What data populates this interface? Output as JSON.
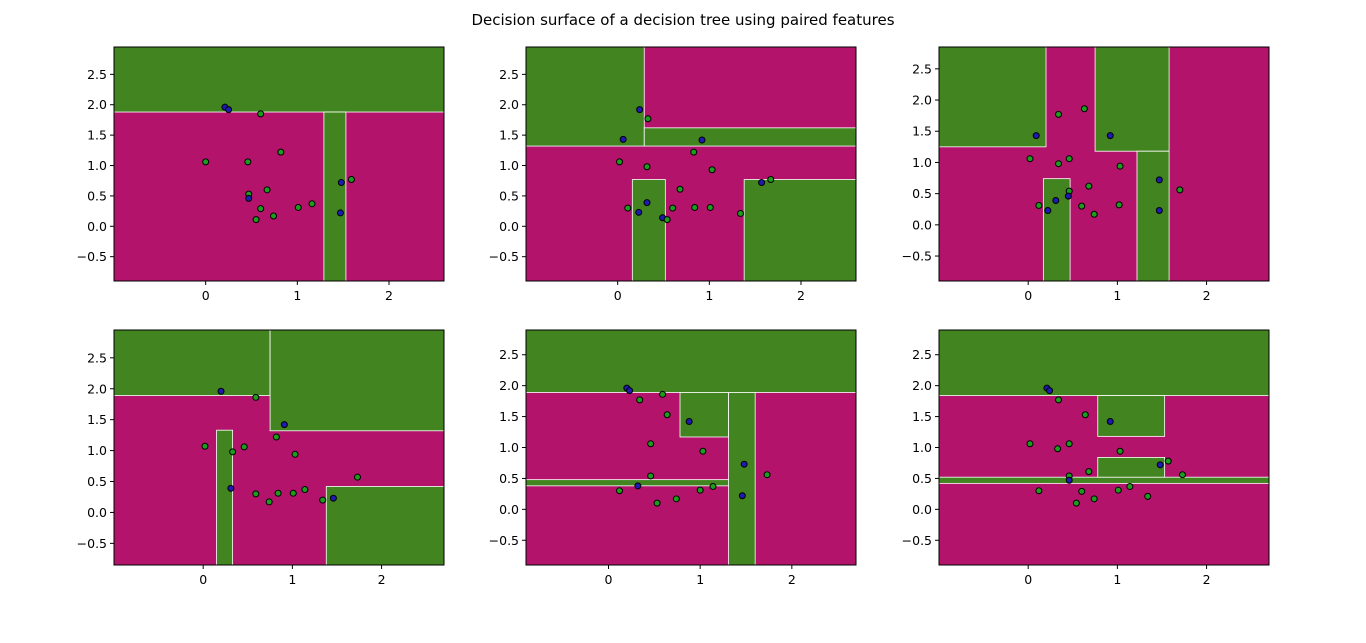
{
  "suptitle": "Decision surface of a decision tree using paired features",
  "colors": {
    "class_a": "#b3136b",
    "class_b": "#428520",
    "boundary": "#ffffff",
    "point_a": "#1d9c1d",
    "point_b": "#1c1cb0",
    "point_edge": "#000000"
  },
  "chart_data": [
    {
      "type": "heatmap",
      "title": "",
      "xlabel": "",
      "ylabel": "",
      "xlim": [
        -1.0,
        2.6
      ],
      "ylim": [
        -0.9,
        2.95
      ],
      "xticks": [
        0,
        1,
        2
      ],
      "yticks": [
        -0.5,
        0.0,
        0.5,
        1.0,
        1.5,
        2.0,
        2.5
      ],
      "background_class": "a",
      "regions": [
        {
          "class": "b",
          "x": [
            -1.0,
            2.6
          ],
          "y": [
            1.88,
            2.95
          ]
        },
        {
          "class": "b",
          "x": [
            1.29,
            1.53
          ],
          "y": [
            -0.9,
            1.88
          ]
        }
      ],
      "points": [
        {
          "x": 0.21,
          "y": 1.96,
          "c": "b"
        },
        {
          "x": 0.25,
          "y": 1.92,
          "c": "b"
        },
        {
          "x": 0.6,
          "y": 1.85,
          "c": "a"
        },
        {
          "x": 0.82,
          "y": 1.22,
          "c": "a"
        },
        {
          "x": 0.0,
          "y": 1.06,
          "c": "a"
        },
        {
          "x": 0.46,
          "y": 1.06,
          "c": "a"
        },
        {
          "x": 0.47,
          "y": 0.53,
          "c": "a"
        },
        {
          "x": 0.67,
          "y": 0.6,
          "c": "a"
        },
        {
          "x": 0.47,
          "y": 0.46,
          "c": "b"
        },
        {
          "x": 0.6,
          "y": 0.29,
          "c": "a"
        },
        {
          "x": 0.55,
          "y": 0.11,
          "c": "a"
        },
        {
          "x": 0.74,
          "y": 0.17,
          "c": "a"
        },
        {
          "x": 1.01,
          "y": 0.31,
          "c": "a"
        },
        {
          "x": 1.16,
          "y": 0.37,
          "c": "a"
        },
        {
          "x": 1.48,
          "y": 0.72,
          "c": "b"
        },
        {
          "x": 1.59,
          "y": 0.77,
          "c": "a"
        },
        {
          "x": 1.47,
          "y": 0.22,
          "c": "b"
        }
      ]
    },
    {
      "type": "heatmap",
      "title": "",
      "xlabel": "",
      "ylabel": "",
      "xlim": [
        -1.0,
        2.6
      ],
      "ylim": [
        -0.9,
        2.95
      ],
      "xticks": [
        0,
        1,
        2
      ],
      "yticks": [
        -0.5,
        0.0,
        0.5,
        1.0,
        1.5,
        2.0,
        2.5
      ],
      "background_class": "a",
      "regions": [
        {
          "class": "b",
          "x": [
            -1.0,
            0.29
          ],
          "y": [
            1.32,
            2.95
          ]
        },
        {
          "class": "b",
          "x": [
            0.29,
            2.6
          ],
          "y": [
            1.32,
            1.62
          ]
        },
        {
          "class": "b",
          "x": [
            0.16,
            0.52
          ],
          "y": [
            -0.9,
            0.77
          ]
        },
        {
          "class": "b",
          "x": [
            1.38,
            2.6
          ],
          "y": [
            -0.9,
            0.77
          ]
        }
      ],
      "points": [
        {
          "x": 0.24,
          "y": 1.92,
          "c": "b"
        },
        {
          "x": 0.33,
          "y": 1.77,
          "c": "a"
        },
        {
          "x": 0.06,
          "y": 1.43,
          "c": "b"
        },
        {
          "x": 0.92,
          "y": 1.42,
          "c": "b"
        },
        {
          "x": 0.83,
          "y": 1.22,
          "c": "a"
        },
        {
          "x": 0.02,
          "y": 1.06,
          "c": "a"
        },
        {
          "x": 0.32,
          "y": 0.98,
          "c": "a"
        },
        {
          "x": 1.03,
          "y": 0.93,
          "c": "a"
        },
        {
          "x": 0.68,
          "y": 0.61,
          "c": "a"
        },
        {
          "x": 0.32,
          "y": 0.39,
          "c": "b"
        },
        {
          "x": 0.11,
          "y": 0.3,
          "c": "a"
        },
        {
          "x": 0.23,
          "y": 0.23,
          "c": "b"
        },
        {
          "x": 0.6,
          "y": 0.3,
          "c": "a"
        },
        {
          "x": 0.84,
          "y": 0.31,
          "c": "a"
        },
        {
          "x": 1.01,
          "y": 0.31,
          "c": "a"
        },
        {
          "x": 0.49,
          "y": 0.14,
          "c": "b"
        },
        {
          "x": 0.54,
          "y": 0.11,
          "c": "a"
        },
        {
          "x": 1.34,
          "y": 0.21,
          "c": "a"
        },
        {
          "x": 1.57,
          "y": 0.72,
          "c": "b"
        },
        {
          "x": 1.67,
          "y": 0.77,
          "c": "a"
        }
      ]
    },
    {
      "type": "heatmap",
      "title": "",
      "xlabel": "",
      "ylabel": "",
      "xlim": [
        -1.0,
        2.7
      ],
      "ylim": [
        -0.9,
        2.85
      ],
      "xticks": [
        0,
        1,
        2
      ],
      "yticks": [
        -0.5,
        0.0,
        0.5,
        1.0,
        1.5,
        2.0,
        2.5
      ],
      "background_class": "a",
      "regions": [
        {
          "class": "b",
          "x": [
            -1.0,
            0.2
          ],
          "y": [
            1.25,
            2.85
          ]
        },
        {
          "class": "b",
          "x": [
            0.75,
            1.58
          ],
          "y": [
            1.18,
            2.85
          ]
        },
        {
          "class": "b",
          "x": [
            1.22,
            1.58
          ],
          "y": [
            -0.9,
            1.18
          ]
        },
        {
          "class": "b",
          "x": [
            0.17,
            0.47
          ],
          "y": [
            -0.9,
            0.74
          ]
        }
      ],
      "points": [
        {
          "x": 0.34,
          "y": 1.77,
          "c": "a"
        },
        {
          "x": 0.63,
          "y": 1.86,
          "c": "a"
        },
        {
          "x": 0.09,
          "y": 1.43,
          "c": "b"
        },
        {
          "x": 0.92,
          "y": 1.43,
          "c": "b"
        },
        {
          "x": 0.02,
          "y": 1.06,
          "c": "a"
        },
        {
          "x": 0.46,
          "y": 1.06,
          "c": "a"
        },
        {
          "x": 0.34,
          "y": 0.98,
          "c": "a"
        },
        {
          "x": 1.03,
          "y": 0.94,
          "c": "a"
        },
        {
          "x": 0.68,
          "y": 0.62,
          "c": "a"
        },
        {
          "x": 0.46,
          "y": 0.54,
          "c": "a"
        },
        {
          "x": 0.45,
          "y": 0.46,
          "c": "b"
        },
        {
          "x": 0.31,
          "y": 0.39,
          "c": "b"
        },
        {
          "x": 0.12,
          "y": 0.31,
          "c": "a"
        },
        {
          "x": 0.22,
          "y": 0.23,
          "c": "b"
        },
        {
          "x": 0.6,
          "y": 0.3,
          "c": "a"
        },
        {
          "x": 0.74,
          "y": 0.17,
          "c": "a"
        },
        {
          "x": 1.02,
          "y": 0.32,
          "c": "a"
        },
        {
          "x": 1.47,
          "y": 0.72,
          "c": "b"
        },
        {
          "x": 1.47,
          "y": 0.23,
          "c": "b"
        },
        {
          "x": 1.7,
          "y": 0.56,
          "c": "a"
        }
      ]
    },
    {
      "type": "heatmap",
      "title": "",
      "xlabel": "",
      "ylabel": "",
      "xlim": [
        -1.0,
        2.7
      ],
      "ylim": [
        -0.85,
        2.95
      ],
      "xticks": [
        0,
        1,
        2
      ],
      "yticks": [
        -0.5,
        0.0,
        0.5,
        1.0,
        1.5,
        2.0,
        2.5
      ],
      "background_class": "a",
      "regions": [
        {
          "class": "b",
          "x": [
            -1.0,
            0.75
          ],
          "y": [
            1.89,
            2.95
          ]
        },
        {
          "class": "b",
          "x": [
            0.75,
            2.7
          ],
          "y": [
            1.32,
            2.95
          ]
        },
        {
          "class": "b",
          "x": [
            0.15,
            0.33
          ],
          "y": [
            -0.85,
            1.33
          ]
        },
        {
          "class": "b",
          "x": [
            1.38,
            2.7
          ],
          "y": [
            -0.85,
            0.42
          ]
        }
      ],
      "points": [
        {
          "x": 0.2,
          "y": 1.96,
          "c": "b"
        },
        {
          "x": 0.59,
          "y": 1.86,
          "c": "a"
        },
        {
          "x": 0.91,
          "y": 1.42,
          "c": "b"
        },
        {
          "x": 0.82,
          "y": 1.22,
          "c": "a"
        },
        {
          "x": 0.02,
          "y": 1.07,
          "c": "a"
        },
        {
          "x": 0.46,
          "y": 1.06,
          "c": "a"
        },
        {
          "x": 0.33,
          "y": 0.98,
          "c": "a"
        },
        {
          "x": 1.03,
          "y": 0.94,
          "c": "a"
        },
        {
          "x": 0.31,
          "y": 0.39,
          "c": "b"
        },
        {
          "x": 0.59,
          "y": 0.3,
          "c": "a"
        },
        {
          "x": 0.84,
          "y": 0.31,
          "c": "a"
        },
        {
          "x": 1.01,
          "y": 0.31,
          "c": "a"
        },
        {
          "x": 1.14,
          "y": 0.37,
          "c": "a"
        },
        {
          "x": 0.74,
          "y": 0.17,
          "c": "a"
        },
        {
          "x": 1.34,
          "y": 0.2,
          "c": "a"
        },
        {
          "x": 1.46,
          "y": 0.23,
          "c": "b"
        },
        {
          "x": 1.73,
          "y": 0.57,
          "c": "a"
        }
      ]
    },
    {
      "type": "heatmap",
      "title": "",
      "xlabel": "",
      "ylabel": "",
      "xlim": [
        -0.9,
        2.7
      ],
      "ylim": [
        -0.9,
        2.9
      ],
      "xticks": [
        0,
        1,
        2
      ],
      "yticks": [
        -0.5,
        0.0,
        0.5,
        1.0,
        1.5,
        2.0,
        2.5
      ],
      "background_class": "a",
      "regions": [
        {
          "class": "b",
          "x": [
            -0.9,
            2.7
          ],
          "y": [
            1.89,
            2.9
          ]
        },
        {
          "class": "b",
          "x": [
            0.78,
            1.31
          ],
          "y": [
            1.17,
            1.89
          ]
        },
        {
          "class": "b",
          "x": [
            1.31,
            1.6
          ],
          "y": [
            -0.9,
            1.89
          ]
        },
        {
          "class": "b",
          "x": [
            -0.9,
            1.31
          ],
          "y": [
            0.38,
            0.48
          ]
        }
      ],
      "points": [
        {
          "x": 0.2,
          "y": 1.96,
          "c": "b"
        },
        {
          "x": 0.23,
          "y": 1.92,
          "c": "b"
        },
        {
          "x": 0.59,
          "y": 1.86,
          "c": "a"
        },
        {
          "x": 0.34,
          "y": 1.77,
          "c": "a"
        },
        {
          "x": 0.64,
          "y": 1.53,
          "c": "a"
        },
        {
          "x": 0.88,
          "y": 1.42,
          "c": "b"
        },
        {
          "x": 0.46,
          "y": 1.06,
          "c": "a"
        },
        {
          "x": 1.03,
          "y": 0.94,
          "c": "a"
        },
        {
          "x": 1.48,
          "y": 0.73,
          "c": "b"
        },
        {
          "x": 1.73,
          "y": 0.56,
          "c": "a"
        },
        {
          "x": 0.46,
          "y": 0.54,
          "c": "a"
        },
        {
          "x": 0.32,
          "y": 0.38,
          "c": "b"
        },
        {
          "x": 0.12,
          "y": 0.3,
          "c": "a"
        },
        {
          "x": 1.0,
          "y": 0.31,
          "c": "a"
        },
        {
          "x": 1.14,
          "y": 0.37,
          "c": "a"
        },
        {
          "x": 0.74,
          "y": 0.17,
          "c": "a"
        },
        {
          "x": 0.53,
          "y": 0.1,
          "c": "a"
        },
        {
          "x": 1.46,
          "y": 0.22,
          "c": "b"
        }
      ]
    },
    {
      "type": "heatmap",
      "title": "",
      "xlabel": "",
      "ylabel": "",
      "xlim": [
        -1.0,
        2.7
      ],
      "ylim": [
        -0.9,
        2.9
      ],
      "xticks": [
        0,
        1,
        2
      ],
      "yticks": [
        -0.5,
        0.0,
        0.5,
        1.0,
        1.5,
        2.0,
        2.5
      ],
      "background_class": "a",
      "regions": [
        {
          "class": "b",
          "x": [
            -1.0,
            2.7
          ],
          "y": [
            1.84,
            2.9
          ]
        },
        {
          "class": "b",
          "x": [
            0.78,
            1.53
          ],
          "y": [
            1.18,
            1.84
          ]
        },
        {
          "class": "b",
          "x": [
            -1.0,
            2.7
          ],
          "y": [
            0.42,
            0.52
          ]
        },
        {
          "class": "b",
          "x": [
            0.78,
            1.53
          ],
          "y": [
            0.52,
            0.84
          ]
        }
      ],
      "points": [
        {
          "x": 0.21,
          "y": 1.96,
          "c": "b"
        },
        {
          "x": 0.24,
          "y": 1.92,
          "c": "b"
        },
        {
          "x": 0.34,
          "y": 1.77,
          "c": "a"
        },
        {
          "x": 0.64,
          "y": 1.53,
          "c": "a"
        },
        {
          "x": 0.92,
          "y": 1.42,
          "c": "b"
        },
        {
          "x": 0.02,
          "y": 1.06,
          "c": "a"
        },
        {
          "x": 0.46,
          "y": 1.06,
          "c": "a"
        },
        {
          "x": 0.33,
          "y": 0.98,
          "c": "a"
        },
        {
          "x": 1.03,
          "y": 0.94,
          "c": "a"
        },
        {
          "x": 1.48,
          "y": 0.72,
          "c": "b"
        },
        {
          "x": 1.57,
          "y": 0.78,
          "c": "a"
        },
        {
          "x": 1.73,
          "y": 0.56,
          "c": "a"
        },
        {
          "x": 0.68,
          "y": 0.61,
          "c": "a"
        },
        {
          "x": 0.46,
          "y": 0.54,
          "c": "a"
        },
        {
          "x": 0.46,
          "y": 0.47,
          "c": "b"
        },
        {
          "x": 0.12,
          "y": 0.3,
          "c": "a"
        },
        {
          "x": 0.6,
          "y": 0.29,
          "c": "a"
        },
        {
          "x": 1.01,
          "y": 0.31,
          "c": "a"
        },
        {
          "x": 1.14,
          "y": 0.37,
          "c": "a"
        },
        {
          "x": 0.74,
          "y": 0.17,
          "c": "a"
        },
        {
          "x": 0.54,
          "y": 0.1,
          "c": "a"
        },
        {
          "x": 1.34,
          "y": 0.21,
          "c": "a"
        }
      ]
    }
  ]
}
